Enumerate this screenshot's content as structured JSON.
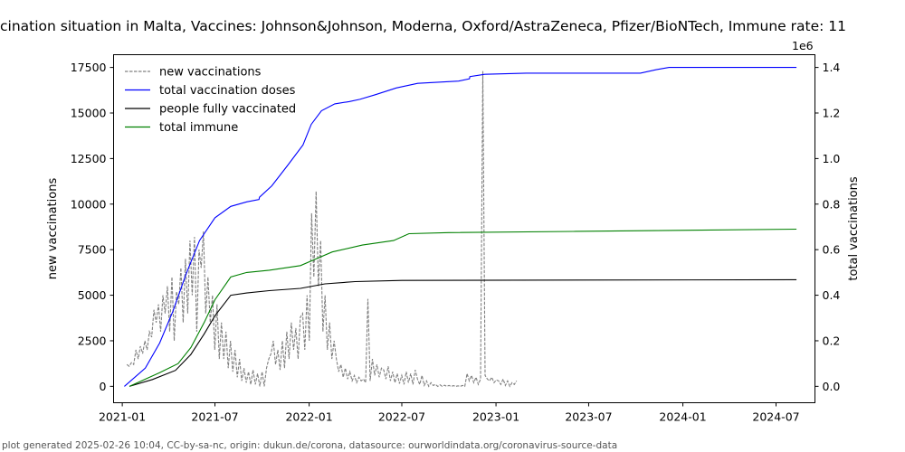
{
  "title": "cination situation in Malta, Vaccines: Johnson&Johnson, Moderna, Oxford/AstraZeneca, Pfizer/BioNTech, Immune rate: 11",
  "footer": "plot generated 2025-02-26 10:04, CC-by-sa-nc, origin: dukun.de/corona, datasource: ourworldindata.org/coronavirus-source-data",
  "chart_data": {
    "type": "line",
    "xlabel": "",
    "ylabel_left": "new vaccinations",
    "ylabel_right": "total vaccinations",
    "right_axis_multiplier": "1e6",
    "xlim": [
      "2020-12-15",
      "2024-09-15"
    ],
    "ylim_left": [
      -900,
      18200
    ],
    "ylim_right": [
      -0.072,
      1.456
    ],
    "x_ticks": [
      "2021-01",
      "2021-07",
      "2022-01",
      "2022-07",
      "2023-01",
      "2023-07",
      "2024-01",
      "2024-07"
    ],
    "y_ticks_left": [
      "0",
      "2500",
      "5000",
      "7500",
      "10000",
      "12500",
      "15000",
      "17500"
    ],
    "y_ticks_right": [
      "0.0",
      "0.2",
      "0.4",
      "0.6",
      "0.8",
      "1.0",
      "1.2",
      "1.4"
    ],
    "legend": {
      "placement": "top-left",
      "entries": [
        "new vaccinations",
        "total vaccination doses",
        "people fully vaccinated",
        "total immune"
      ]
    },
    "series": [
      {
        "name": "new vaccinations",
        "axis": "left",
        "color": "#808080",
        "dashed": true,
        "start": "2021-01-10",
        "step_days": 4.4,
        "values": [
          1200,
          1100,
          1300,
          1200,
          2000,
          1500,
          2200,
          1800,
          2500,
          2000,
          3000,
          2700,
          4200,
          3500,
          4500,
          3000,
          5000,
          4000,
          5500,
          3000,
          6000,
          2500,
          5200,
          4500,
          6500,
          3500,
          7000,
          4000,
          8000,
          5000,
          8200,
          3000,
          7500,
          6500,
          8500,
          4000,
          6000,
          3500,
          5000,
          2000,
          4500,
          1500,
          3500,
          1500,
          3000,
          1000,
          2500,
          800,
          2000,
          500,
          1500,
          300,
          1000,
          200,
          800,
          100,
          900,
          100,
          700,
          0,
          800,
          0,
          1000,
          1500,
          1800,
          2500,
          1200,
          2000,
          900,
          2500,
          1000,
          3000,
          1500,
          3500,
          2000,
          3200,
          1500,
          3800,
          4000,
          2000,
          5000,
          2500,
          9500,
          6000,
          10700,
          5500,
          8000,
          3000,
          5000,
          2000,
          3500,
          1500,
          2500,
          1500,
          800,
          1200,
          500,
          1000,
          400,
          800,
          300,
          600,
          200,
          500,
          300,
          400,
          200,
          4800,
          300,
          1500,
          600,
          1200,
          500,
          1000,
          900,
          400,
          1100,
          300,
          800,
          200,
          700,
          150,
          600,
          100,
          800,
          200,
          700,
          100,
          900,
          400,
          100,
          600,
          50,
          300,
          0,
          200,
          50,
          100,
          0,
          80,
          0,
          60,
          0,
          50,
          0,
          40,
          0,
          30,
          0,
          50,
          0,
          700,
          300,
          600,
          200,
          500,
          100,
          400,
          17300,
          600,
          400,
          300,
          500,
          200,
          350,
          300,
          100,
          400,
          50,
          300,
          0,
          200,
          100,
          300
        ]
      },
      {
        "name": "total vaccination doses",
        "axis": "right",
        "color": "#0000ff",
        "points": [
          [
            "2021-01-05",
            0.0
          ],
          [
            "2021-02-15",
            0.08
          ],
          [
            "2021-03-15",
            0.19
          ],
          [
            "2021-04-10",
            0.33
          ],
          [
            "2021-05-05",
            0.49
          ],
          [
            "2021-06-01",
            0.64
          ],
          [
            "2021-07-01",
            0.74
          ],
          [
            "2021-08-01",
            0.79
          ],
          [
            "2021-09-01",
            0.81
          ],
          [
            "2021-09-25",
            0.82
          ],
          [
            "2021-09-26",
            0.83
          ],
          [
            "2021-10-20",
            0.88
          ],
          [
            "2021-11-20",
            0.97
          ],
          [
            "2021-12-20",
            1.06
          ],
          [
            "2022-01-05",
            1.15
          ],
          [
            "2022-01-25",
            1.21
          ],
          [
            "2022-02-20",
            1.24
          ],
          [
            "2022-03-20",
            1.25
          ],
          [
            "2022-04-10",
            1.26
          ],
          [
            "2022-05-10",
            1.28
          ],
          [
            "2022-06-20",
            1.31
          ],
          [
            "2022-08-01",
            1.33
          ],
          [
            "2022-10-20",
            1.34
          ],
          [
            "2022-11-10",
            1.35
          ],
          [
            "2022-11-11",
            1.36
          ],
          [
            "2022-12-10",
            1.37
          ],
          [
            "2023-03-01",
            1.375
          ],
          [
            "2023-10-10",
            1.375
          ],
          [
            "2023-11-10",
            1.39
          ],
          [
            "2023-12-05",
            1.4
          ],
          [
            "2024-08-10",
            1.4
          ]
        ]
      },
      {
        "name": "people fully vaccinated",
        "axis": "right",
        "color": "#000000",
        "points": [
          [
            "2021-01-15",
            0.0
          ],
          [
            "2021-03-01",
            0.03
          ],
          [
            "2021-04-15",
            0.07
          ],
          [
            "2021-05-15",
            0.14
          ],
          [
            "2021-06-10",
            0.23
          ],
          [
            "2021-07-01",
            0.31
          ],
          [
            "2021-08-01",
            0.4
          ],
          [
            "2021-09-01",
            0.41
          ],
          [
            "2021-10-15",
            0.42
          ],
          [
            "2021-12-15",
            0.43
          ],
          [
            "2022-02-01",
            0.45
          ],
          [
            "2022-04-01",
            0.46
          ],
          [
            "2022-07-01",
            0.465
          ],
          [
            "2024-08-10",
            0.468
          ]
        ]
      },
      {
        "name": "total immune",
        "axis": "right",
        "color": "#008000",
        "points": [
          [
            "2021-01-15",
            0.0
          ],
          [
            "2021-03-15",
            0.06
          ],
          [
            "2021-04-20",
            0.1
          ],
          [
            "2021-05-15",
            0.17
          ],
          [
            "2021-06-10",
            0.28
          ],
          [
            "2021-07-01",
            0.38
          ],
          [
            "2021-08-01",
            0.48
          ],
          [
            "2021-09-01",
            0.5
          ],
          [
            "2021-10-15",
            0.51
          ],
          [
            "2021-12-15",
            0.53
          ],
          [
            "2022-01-15",
            0.56
          ],
          [
            "2022-02-15",
            0.59
          ],
          [
            "2022-04-15",
            0.62
          ],
          [
            "2022-06-15",
            0.64
          ],
          [
            "2022-07-15",
            0.67
          ],
          [
            "2022-10-01",
            0.675
          ],
          [
            "2023-06-01",
            0.68
          ],
          [
            "2024-08-10",
            0.69
          ]
        ]
      }
    ]
  }
}
